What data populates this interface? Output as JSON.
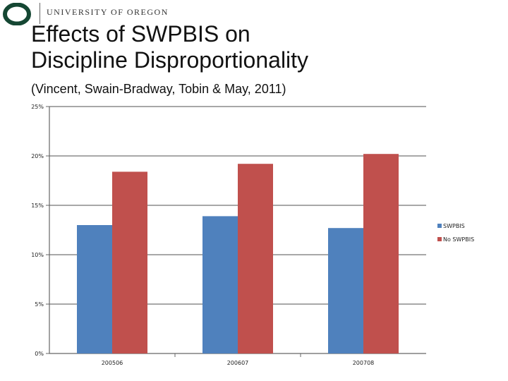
{
  "header": {
    "logo_letter": "O",
    "university_name": "UNIVERSITY OF OREGON",
    "brand_green": "#154733"
  },
  "slide": {
    "title_line1": "Effects of SWPBIS on",
    "title_line2": "Discipline Disproportionality",
    "subtitle": "(Vincent, Swain-Bradway, Tobin & May, 2011)"
  },
  "chart_data": {
    "type": "bar",
    "title": "",
    "xlabel": "",
    "ylabel": "",
    "categories": [
      "200506",
      "200607",
      "200708"
    ],
    "series": [
      {
        "name": "SWPBIS",
        "color": "#4F81BD",
        "values": [
          13.0,
          13.9,
          12.7
        ]
      },
      {
        "name": "No SWPBIS",
        "color": "#C0504D",
        "values": [
          18.4,
          19.2,
          20.2
        ]
      }
    ],
    "ylim": [
      0,
      25
    ],
    "yticks": [
      0,
      5,
      10,
      15,
      20,
      25
    ],
    "ytick_labels": [
      "0%",
      "5%",
      "10%",
      "15%",
      "20%",
      "25%"
    ],
    "grid": true,
    "legend_position": "right"
  }
}
